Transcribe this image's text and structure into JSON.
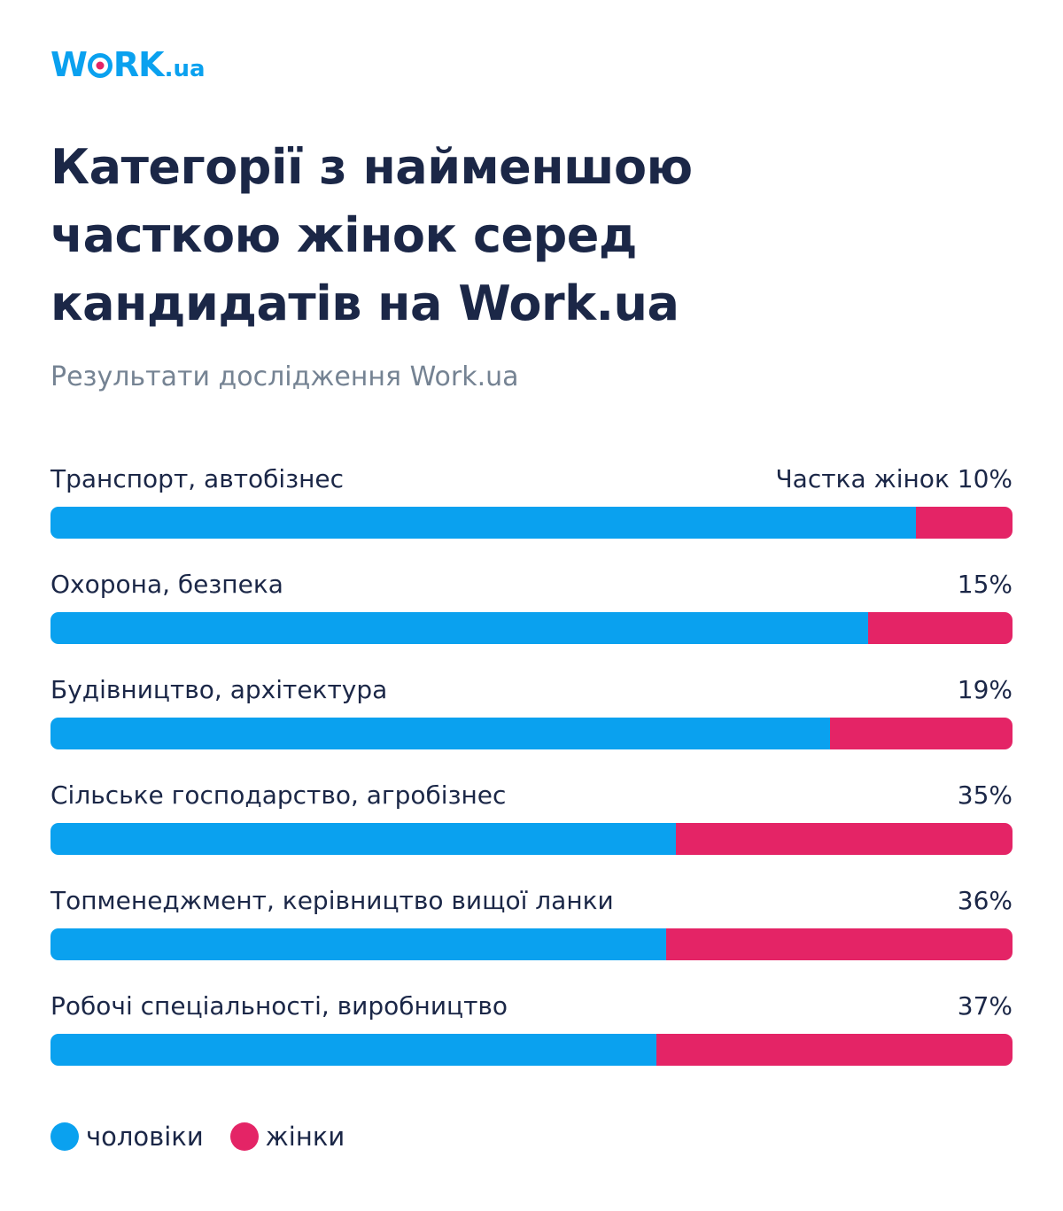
{
  "brand": {
    "logo_pre": "W",
    "logo_post": "RK",
    "logo_suffix": ".ua",
    "color_primary": "#0aa1ef",
    "color_accent": "#e42466"
  },
  "title": "Категорії з найменшою часткою жінок серед кандидатів на Work.ua",
  "subtitle": "Результати дослідження Work.ua",
  "value_prefix": "Частка жінок ",
  "chart_data": {
    "type": "bar",
    "orientation": "horizontal-stacked-100",
    "title": "Категорії з найменшою часткою жінок серед кандидатів на Work.ua",
    "categories": [
      "Транспорт, автобізнес",
      "Охорона, безпека",
      "Будівництво, архітектура",
      "Сільське господарство, агробізнес",
      "Топменеджмент, керівництво вищої ланки",
      "Робочі спеціальності, виробництво"
    ],
    "series": [
      {
        "name": "чоловіки",
        "color": "#0aa1ef",
        "values": [
          90,
          85,
          81,
          65,
          64,
          63
        ]
      },
      {
        "name": "жінки",
        "color": "#e42466",
        "values": [
          10,
          15,
          19,
          35,
          36,
          37
        ]
      }
    ],
    "value_labels": [
      "10%",
      "15%",
      "19%",
      "35%",
      "36%",
      "37%"
    ],
    "unit": "%",
    "xlim": [
      0,
      100
    ],
    "legend": "bottom-left"
  },
  "legend": {
    "men": "чоловіки",
    "women": "жінки"
  }
}
